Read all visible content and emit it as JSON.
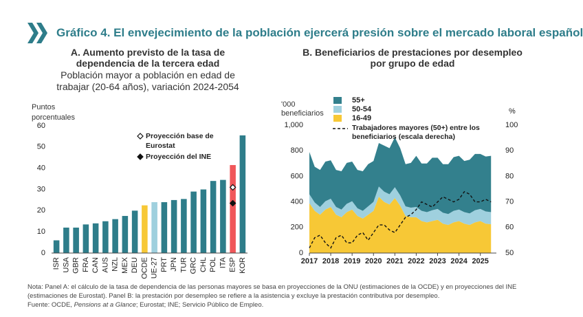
{
  "header": {
    "title": "Gráfico 4. El envejecimiento de la población ejercerá presión sobre el mercado laboral español"
  },
  "notes": [
    "Nota: Panel A: el cálculo de la tasa de dependencia de las personas mayores se basa en proyecciones de la ONU (estimaciones de la OCDE) y en proyecciones del INE",
    "(estimaciones de Eurostat). Panel B: la prestación por desempleo se refiere a la asistencia y excluye la prestación contributiva por desempleo."
  ],
  "source": [
    "Fuente: OCDE, ",
    "Pensions at a Glance",
    "; Eurostat; INE; Servicio Público de Empleo."
  ],
  "chart_data": [
    {
      "type": "bar",
      "title": [
        "A. Aumento previsto de la tasa de",
        "dependencia de la tercera edad"
      ],
      "subtitle": [
        "Población mayor a población en edad de",
        "trabajar (20-64 años), variación 2024-2054"
      ],
      "ylabel": "Puntos porcentuales",
      "categories": [
        "ISR",
        "USA",
        "GBR",
        "FRA",
        "CAN",
        "AUS",
        "NZL",
        "MEX",
        "DEU",
        "OCDE",
        "UE-27",
        "PRT",
        "JPN",
        "TUR",
        "GRC",
        "CHL",
        "POL",
        "ITA",
        "ESP",
        "KOR"
      ],
      "values": [
        6,
        12,
        12,
        13.5,
        14,
        15,
        16,
        17.5,
        20,
        22.5,
        24,
        24,
        25,
        25.5,
        29,
        30,
        34,
        34.5,
        41.5,
        55.5
      ],
      "colors": [
        "#2e7d8a",
        "#2e7d8a",
        "#2e7d8a",
        "#2e7d8a",
        "#2e7d8a",
        "#2e7d8a",
        "#2e7d8a",
        "#2e7d8a",
        "#2e7d8a",
        "#f7c836",
        "#9fd0de",
        "#2e7d8a",
        "#2e7d8a",
        "#2e7d8a",
        "#2e7d8a",
        "#2e7d8a",
        "#2e7d8a",
        "#2e7d8a",
        "#f0575a",
        "#2e7d8a"
      ],
      "markers": [
        {
          "name": "Proyección base de Eurostat",
          "marker": "open-diamond",
          "values": [
            null,
            null,
            null,
            null,
            null,
            null,
            null,
            null,
            null,
            null,
            null,
            null,
            null,
            null,
            null,
            null,
            null,
            null,
            31,
            null
          ]
        },
        {
          "name": "Proyección del INE",
          "marker": "diamond",
          "values": [
            null,
            null,
            null,
            null,
            null,
            null,
            null,
            null,
            null,
            null,
            null,
            null,
            null,
            null,
            null,
            null,
            null,
            null,
            23.5,
            null
          ]
        }
      ],
      "ylim": [
        0,
        60
      ],
      "yticks": [
        0,
        10,
        20,
        30,
        40,
        50,
        60
      ],
      "grid": false
    },
    {
      "type": "area",
      "title": [
        "B. Beneficiarios de prestaciones por desempleo",
        "por grupo de edad"
      ],
      "ylabel": "'000 beneficiarios",
      "y2label": "%",
      "x": [
        2017,
        2017.25,
        2017.5,
        2017.75,
        2018,
        2018.25,
        2018.5,
        2018.75,
        2019,
        2019.25,
        2019.5,
        2019.75,
        2020,
        2020.25,
        2020.5,
        2020.75,
        2021,
        2021.25,
        2021.5,
        2021.75,
        2022,
        2022.25,
        2022.5,
        2022.75,
        2023,
        2023.25,
        2023.5,
        2023.75,
        2024,
        2024.25,
        2024.5,
        2024.75,
        2025,
        2025.25,
        2025.5
      ],
      "series": [
        {
          "name": "55+",
          "color": "#33808d",
          "values": [
            330,
            280,
            290,
            310,
            300,
            290,
            300,
            320,
            310,
            300,
            310,
            330,
            320,
            340,
            360,
            360,
            390,
            370,
            330,
            350,
            400,
            370,
            380,
            410,
            400,
            380,
            390,
            420,
            420,
            400,
            420,
            440,
            430,
            430,
            440
          ]
        },
        {
          "name": "50-54",
          "color": "#9fd0de",
          "values": [
            70,
            65,
            60,
            65,
            65,
            60,
            60,
            65,
            65,
            60,
            60,
            65,
            70,
            80,
            80,
            80,
            85,
            80,
            75,
            75,
            80,
            80,
            80,
            85,
            85,
            85,
            85,
            90,
            90,
            90,
            90,
            95,
            95,
            95,
            95
          ]
        },
        {
          "name": "16-49",
          "color": "#f7c836",
          "values": [
            390,
            330,
            300,
            340,
            360,
            300,
            280,
            320,
            340,
            290,
            270,
            300,
            330,
            440,
            400,
            380,
            430,
            370,
            290,
            280,
            280,
            250,
            240,
            250,
            260,
            230,
            220,
            240,
            250,
            230,
            220,
            240,
            250,
            230,
            225
          ]
        },
        {
          "name": "Trabajadores mayores (50+) entre los beneficiarios (escala derecha)",
          "color": "#111111",
          "axis": "y2",
          "dash": true,
          "values": [
            52,
            56,
            57,
            54,
            52,
            56,
            57,
            54,
            54,
            57,
            58,
            55,
            58,
            61,
            61,
            59,
            58,
            61,
            64,
            65,
            67,
            70,
            69,
            68,
            70,
            72,
            71,
            70,
            71,
            74,
            73,
            70,
            70,
            71,
            70
          ]
        }
      ],
      "xlim": [
        2017,
        2025.75
      ],
      "xticks": [
        2017,
        2018,
        2019,
        2020,
        2021,
        2022,
        2023,
        2024,
        2025
      ],
      "ylim": [
        0,
        1000
      ],
      "yticks": [
        0,
        200,
        400,
        600,
        800,
        {
          "value": 1000,
          "label": "1,000"
        }
      ],
      "y2lim": [
        50,
        100
      ],
      "y2ticks": [
        50,
        60,
        70,
        80,
        90,
        100
      ],
      "grid": false
    }
  ]
}
